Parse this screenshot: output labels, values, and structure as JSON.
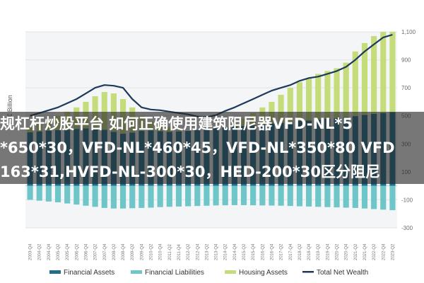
{
  "overlay": {
    "line1": "规杠杆炒股平台 如何正确使用建筑阻尼器VFD-NL*5",
    "line2": "*650*30，VFD-NL*460*45，VFD-NL*350*80 VFD",
    "line3": "163*31,HVFD-NL-300*30，HED-200*30区分阻尼"
  },
  "chart_data": {
    "type": "bar",
    "ylabel": "€ Billion",
    "ylim": [
      -300,
      1100
    ],
    "ytick_labels": [
      "1,100",
      "900",
      "700",
      "500",
      "300",
      "100",
      "-100",
      "-300"
    ],
    "yticks": [
      1100,
      900,
      700,
      500,
      300,
      100,
      -100,
      -300
    ],
    "grid": true,
    "legend_position": "bottom",
    "colors": {
      "financial_assets": "#1f6f8b",
      "financial_liabilities": "#6fc6c9",
      "housing_assets": "#c5dc7a",
      "total_net_wealth": "#1d3a5c"
    },
    "x": [
      "2003-Q4",
      "2004-Q2",
      "2004-Q4",
      "2005-Q2",
      "2005-Q4",
      "2006-Q2",
      "2006-Q4",
      "2007-Q2",
      "2007-Q4",
      "2008-Q2",
      "2008-Q4",
      "2009-Q2",
      "2009-Q4",
      "2010-Q2",
      "2010-Q4",
      "2011-Q2",
      "2011-Q4",
      "2012-Q2",
      "2012-Q4",
      "2013-Q2",
      "2013-Q4",
      "2014-Q2",
      "2014-Q4",
      "2015-Q2",
      "2015-Q4",
      "2016-Q2",
      "2016-Q4",
      "2017-Q2",
      "2017-Q4",
      "2018-Q2",
      "2018-Q4",
      "2019-Q2",
      "2019-Q4",
      "2020-Q2",
      "2020-Q4",
      "2021-Q2",
      "2021-Q4",
      "2022-Q2",
      "2022-Q4",
      "2023-Q2"
    ],
    "series": [
      {
        "name": "Financial Assets",
        "kind": "bar",
        "values": [
          382,
          388,
          394,
          398,
          400,
          406,
          410,
          412,
          400,
          385,
          372,
          380,
          392,
          395,
          390,
          385,
          388,
          392,
          398,
          404,
          412,
          418,
          422,
          428,
          432,
          438,
          444,
          450,
          456,
          462,
          466,
          472,
          478,
          482,
          490,
          498,
          506,
          514,
          520,
          526
        ]
      },
      {
        "name": "Financial Liabilities",
        "kind": "bar",
        "values": [
          -100,
          -106,
          -112,
          -118,
          -126,
          -134,
          -142,
          -150,
          -158,
          -162,
          -162,
          -160,
          -158,
          -156,
          -152,
          -150,
          -148,
          -146,
          -144,
          -142,
          -140,
          -139,
          -138,
          -138,
          -139,
          -140,
          -141,
          -142,
          -144,
          -146,
          -148,
          -150,
          -152,
          -154,
          -156,
          -158,
          -162,
          -166,
          -170,
          -174
        ]
      },
      {
        "name": "Housing Assets",
        "kind": "bar",
        "values": [
          420,
          440,
          470,
          500,
          530,
          560,
          600,
          640,
          670,
          660,
          620,
          560,
          500,
          460,
          440,
          420,
          400,
          385,
          378,
          380,
          392,
          420,
          450,
          480,
          520,
          560,
          600,
          650,
          700,
          740,
          770,
          800,
          820,
          840,
          880,
          960,
          1020,
          1070,
          1100,
          1100
        ]
      },
      {
        "name": "Total Net Wealth",
        "kind": "line",
        "values": [
          500,
          520,
          540,
          560,
          590,
          620,
          660,
          700,
          720,
          715,
          700,
          620,
          560,
          545,
          540,
          530,
          520,
          510,
          495,
          490,
          505,
          535,
          560,
          590,
          620,
          650,
          680,
          700,
          720,
          750,
          770,
          780,
          800,
          820,
          850,
          900,
          960,
          1010,
          1060,
          1080
        ]
      }
    ]
  },
  "legend": {
    "financial_assets": "Financial Assets",
    "financial_liabilities": "Financial Liabilities",
    "housing_assets": "Housing Assets",
    "total_net_wealth": "Total Net Wealth"
  }
}
